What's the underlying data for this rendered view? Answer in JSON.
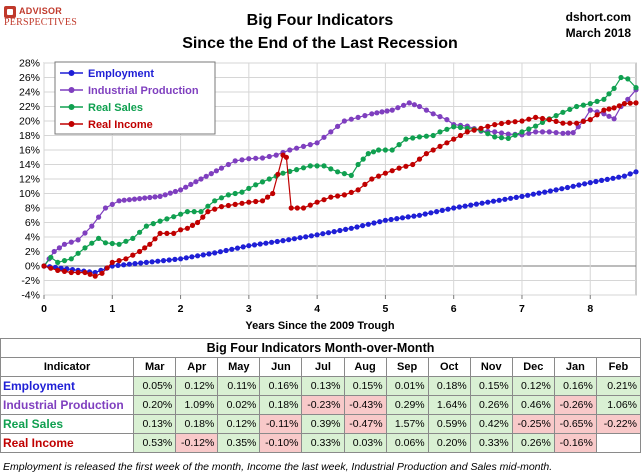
{
  "header": {
    "logo_line1": "ADVISOR",
    "logo_line2": "PERSPECTIVES",
    "title_line1": "Big Four Indicators",
    "title_line2": "Since the End of the Last Recession",
    "source_line1": "dshort.com",
    "source_line2": "March 2018"
  },
  "colors": {
    "employment": "#1f1fd6",
    "industrial_production": "#7f3fbf",
    "real_sales": "#10a050",
    "real_income": "#c00000",
    "positive_cell": "#d9f0d3",
    "negative_cell": "#f8c9c9"
  },
  "chart_data": {
    "type": "line",
    "xlabel": "Years Since the 2009 Trough",
    "ylabel": "",
    "xlim": [
      0,
      8.67
    ],
    "ylim": [
      -4,
      28
    ],
    "x_ticks": [
      "0",
      "1",
      "2",
      "3",
      "4",
      "5",
      "6",
      "7",
      "8"
    ],
    "y_ticks": [
      "-4%",
      "-2%",
      "0%",
      "2%",
      "4%",
      "6%",
      "8%",
      "10%",
      "12%",
      "14%",
      "16%",
      "18%",
      "20%",
      "22%",
      "24%",
      "26%",
      "28%"
    ],
    "grid": true,
    "legend_position": "top-left",
    "series": [
      {
        "name": "Employment",
        "points": [
          [
            0,
            0
          ],
          [
            0.5,
            -0.6
          ],
          [
            0.75,
            -0.9
          ],
          [
            1,
            0
          ],
          [
            1.5,
            0.5
          ],
          [
            2,
            1
          ],
          [
            2.5,
            1.8
          ],
          [
            3,
            2.8
          ],
          [
            3.5,
            3.5
          ],
          [
            4,
            4.3
          ],
          [
            4.5,
            5.2
          ],
          [
            5,
            6.3
          ],
          [
            5.5,
            7
          ],
          [
            6,
            8
          ],
          [
            6.5,
            8.8
          ],
          [
            7,
            9.6
          ],
          [
            7.5,
            10.5
          ],
          [
            8,
            11.5
          ],
          [
            8.5,
            12.4
          ],
          [
            8.67,
            13
          ]
        ]
      },
      {
        "name": "Industrial Production",
        "points": [
          [
            0,
            0
          ],
          [
            0.15,
            2
          ],
          [
            0.3,
            3
          ],
          [
            0.5,
            3.6
          ],
          [
            0.7,
            5.5
          ],
          [
            0.9,
            8
          ],
          [
            1.1,
            9
          ],
          [
            1.4,
            9.3
          ],
          [
            1.7,
            9.6
          ],
          [
            2,
            10.5
          ],
          [
            2.3,
            12
          ],
          [
            2.6,
            13.5
          ],
          [
            2.8,
            14.5
          ],
          [
            3,
            14.8
          ],
          [
            3.2,
            14.9
          ],
          [
            3.4,
            15.3
          ],
          [
            3.6,
            16
          ],
          [
            3.8,
            16.5
          ],
          [
            4,
            17
          ],
          [
            4.2,
            18.5
          ],
          [
            4.4,
            20
          ],
          [
            4.6,
            20.5
          ],
          [
            4.8,
            21
          ],
          [
            5.1,
            21.5
          ],
          [
            5.35,
            22.5
          ],
          [
            5.5,
            22
          ],
          [
            5.7,
            21
          ],
          [
            5.9,
            20.2
          ],
          [
            6,
            19.5
          ],
          [
            6.2,
            19.3
          ],
          [
            6.4,
            18.6
          ],
          [
            6.6,
            18.5
          ],
          [
            6.8,
            18.2
          ],
          [
            7,
            18.1
          ],
          [
            7.2,
            18.5
          ],
          [
            7.4,
            18.5
          ],
          [
            7.6,
            18.3
          ],
          [
            7.75,
            18.4
          ],
          [
            7.9,
            20
          ],
          [
            8,
            21.5
          ],
          [
            8.2,
            21
          ],
          [
            8.35,
            20.3
          ],
          [
            8.45,
            22
          ],
          [
            8.55,
            23
          ],
          [
            8.67,
            24.3
          ]
        ]
      },
      {
        "name": "Real Sales",
        "points": [
          [
            0,
            0
          ],
          [
            0.1,
            1.2
          ],
          [
            0.2,
            0.5
          ],
          [
            0.4,
            1
          ],
          [
            0.6,
            2.5
          ],
          [
            0.8,
            3.8
          ],
          [
            0.9,
            3.2
          ],
          [
            1.1,
            3
          ],
          [
            1.3,
            3.8
          ],
          [
            1.5,
            5.5
          ],
          [
            1.7,
            6.2
          ],
          [
            1.9,
            6.8
          ],
          [
            2.1,
            7.5
          ],
          [
            2.3,
            7.5
          ],
          [
            2.5,
            9
          ],
          [
            2.7,
            9.8
          ],
          [
            2.9,
            10.2
          ],
          [
            3.1,
            11.2
          ],
          [
            3.3,
            12
          ],
          [
            3.5,
            12.8
          ],
          [
            3.7,
            13.3
          ],
          [
            3.9,
            13.8
          ],
          [
            4.1,
            13.8
          ],
          [
            4.3,
            13
          ],
          [
            4.5,
            12.5
          ],
          [
            4.6,
            14
          ],
          [
            4.75,
            15.5
          ],
          [
            4.9,
            16
          ],
          [
            5.1,
            16
          ],
          [
            5.3,
            17.5
          ],
          [
            5.5,
            17.8
          ],
          [
            5.7,
            18
          ],
          [
            5.8,
            18.5
          ],
          [
            6,
            19.2
          ],
          [
            6.2,
            19
          ],
          [
            6.4,
            18.7
          ],
          [
            6.6,
            17.8
          ],
          [
            6.8,
            17.6
          ],
          [
            7,
            18.5
          ],
          [
            7.2,
            19.3
          ],
          [
            7.4,
            20.3
          ],
          [
            7.6,
            21.2
          ],
          [
            7.8,
            22
          ],
          [
            8,
            22.4
          ],
          [
            8.2,
            23
          ],
          [
            8.35,
            24.5
          ],
          [
            8.45,
            26
          ],
          [
            8.55,
            25.8
          ],
          [
            8.67,
            24.6
          ]
        ]
      },
      {
        "name": "Real Income",
        "points": [
          [
            0,
            0
          ],
          [
            0.2,
            -0.6
          ],
          [
            0.4,
            -0.9
          ],
          [
            0.6,
            -0.9
          ],
          [
            0.75,
            -1.4
          ],
          [
            0.85,
            -1
          ],
          [
            1,
            0.5
          ],
          [
            1.2,
            1
          ],
          [
            1.4,
            2
          ],
          [
            1.55,
            3
          ],
          [
            1.7,
            4.5
          ],
          [
            1.9,
            4.5
          ],
          [
            2,
            5
          ],
          [
            2.1,
            5.2
          ],
          [
            2.25,
            6
          ],
          [
            2.4,
            7.5
          ],
          [
            2.6,
            8.2
          ],
          [
            2.8,
            8.5
          ],
          [
            3,
            8.8
          ],
          [
            3.2,
            9
          ],
          [
            3.35,
            10
          ],
          [
            3.5,
            15.3
          ],
          [
            3.55,
            15
          ],
          [
            3.62,
            8
          ],
          [
            3.8,
            8
          ],
          [
            4,
            8.8
          ],
          [
            4.2,
            9.5
          ],
          [
            4.4,
            9.8
          ],
          [
            4.6,
            10.5
          ],
          [
            4.8,
            12
          ],
          [
            5,
            12.8
          ],
          [
            5.2,
            13.5
          ],
          [
            5.4,
            14
          ],
          [
            5.6,
            15.5
          ],
          [
            5.8,
            16.5
          ],
          [
            6,
            17.5
          ],
          [
            6.2,
            18.5
          ],
          [
            6.4,
            19
          ],
          [
            6.6,
            19.5
          ],
          [
            6.8,
            19.8
          ],
          [
            7,
            20
          ],
          [
            7.2,
            20.5
          ],
          [
            7.4,
            20.2
          ],
          [
            7.6,
            19.7
          ],
          [
            7.8,
            19.7
          ],
          [
            8,
            20.2
          ],
          [
            8.2,
            21.5
          ],
          [
            8.35,
            21.8
          ],
          [
            8.5,
            22.4
          ],
          [
            8.67,
            22.5
          ]
        ]
      }
    ]
  },
  "table": {
    "title": "Big Four Indicators Month-over-Month",
    "header_label": "Indicator",
    "months": [
      "Mar",
      "Apr",
      "May",
      "Jun",
      "Jul",
      "Aug",
      "Sep",
      "Oct",
      "Nov",
      "Dec",
      "Jan",
      "Feb"
    ],
    "rows": [
      {
        "label": "Employment",
        "values": [
          "0.05%",
          "0.12%",
          "0.11%",
          "0.16%",
          "0.13%",
          "0.15%",
          "0.01%",
          "0.18%",
          "0.15%",
          "0.12%",
          "0.16%",
          "0.21%"
        ]
      },
      {
        "label": "Industrial Production",
        "values": [
          "0.20%",
          "1.09%",
          "0.02%",
          "0.18%",
          "-0.23%",
          "-0.43%",
          "0.29%",
          "1.64%",
          "0.26%",
          "0.46%",
          "-0.26%",
          "1.06%"
        ]
      },
      {
        "label": "Real Sales",
        "values": [
          "0.13%",
          "0.18%",
          "0.12%",
          "-0.11%",
          "0.39%",
          "-0.47%",
          "1.57%",
          "0.59%",
          "0.42%",
          "-0.25%",
          "-0.65%",
          "-0.22%"
        ]
      },
      {
        "label": "Real Income",
        "values": [
          "0.53%",
          "-0.12%",
          "0.35%",
          "-0.10%",
          "0.33%",
          "0.03%",
          "0.06%",
          "0.20%",
          "0.33%",
          "0.26%",
          "-0.16%",
          ""
        ]
      }
    ]
  },
  "footnote": "Employment is released the first week of the month, Income the last week, Industrial Production and Sales mid-month."
}
